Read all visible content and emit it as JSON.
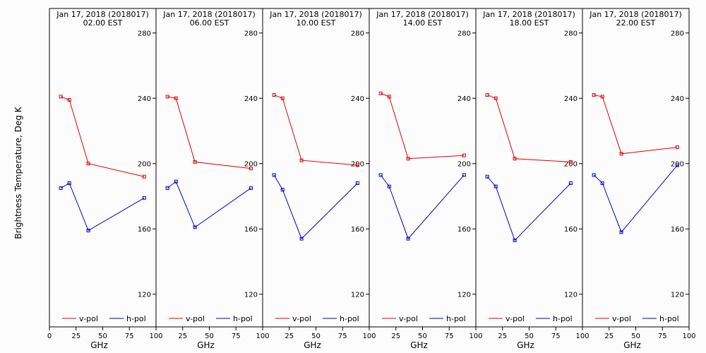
{
  "y_axis_label": "Brightness Temperature, Deg K",
  "x_axis_label": "GHz",
  "colors": {
    "v_pol": "#e00000",
    "h_pol": "#0000cc",
    "axis": "#000000",
    "background": "#fcfcfc"
  },
  "chart_data": {
    "type": "line",
    "ylabel": "Brightness Temperature, Deg K",
    "xlabel": "GHz",
    "xlim": [
      0,
      100
    ],
    "ylim": [
      100,
      295
    ],
    "x_ticks": [
      "0",
      "25",
      "50",
      "75",
      "100"
    ],
    "y_ticks": [
      "120",
      "160",
      "200",
      "240",
      "280"
    ],
    "grid": false,
    "legend": "bottom",
    "x": [
      10.7,
      18.7,
      36.5,
      89.0
    ],
    "panels": [
      {
        "title": "Jan 17, 2018 (2018017)",
        "subtitle": "02.00 EST",
        "series": [
          {
            "name": "v-pol",
            "values": [
              241,
              239,
              200,
              192
            ]
          },
          {
            "name": "h-pol",
            "values": [
              185,
              188,
              159,
              179
            ]
          }
        ]
      },
      {
        "title": "Jan 17, 2018 (2018017)",
        "subtitle": "06.00 EST",
        "series": [
          {
            "name": "v-pol",
            "values": [
              241,
              240,
              201,
              197
            ]
          },
          {
            "name": "h-pol",
            "values": [
              185,
              189,
              161,
              185
            ]
          }
        ]
      },
      {
        "title": "Jan 17, 2018 (2018017)",
        "subtitle": "10.00 EST",
        "series": [
          {
            "name": "v-pol",
            "values": [
              242,
              240,
              202,
              199
            ]
          },
          {
            "name": "h-pol",
            "values": [
              193,
              184,
              154,
              188
            ]
          }
        ]
      },
      {
        "title": "Jan 17, 2018 (2018017)",
        "subtitle": "14.00 EST",
        "series": [
          {
            "name": "v-pol",
            "values": [
              243,
              241,
              203,
              205
            ]
          },
          {
            "name": "h-pol",
            "values": [
              193,
              186,
              154,
              193
            ]
          }
        ]
      },
      {
        "title": "Jan 17, 2018 (2018017)",
        "subtitle": "18.00 EST",
        "series": [
          {
            "name": "v-pol",
            "values": [
              242,
              240,
              203,
              201
            ]
          },
          {
            "name": "h-pol",
            "values": [
              192,
              186,
              153,
              188
            ]
          }
        ]
      },
      {
        "title": "Jan 17, 2018 (2018017)",
        "subtitle": "22.00 EST",
        "series": [
          {
            "name": "v-pol",
            "values": [
              242,
              241,
              206,
              210
            ]
          },
          {
            "name": "h-pol",
            "values": [
              193,
              188,
              158,
              199
            ]
          }
        ]
      }
    ]
  }
}
